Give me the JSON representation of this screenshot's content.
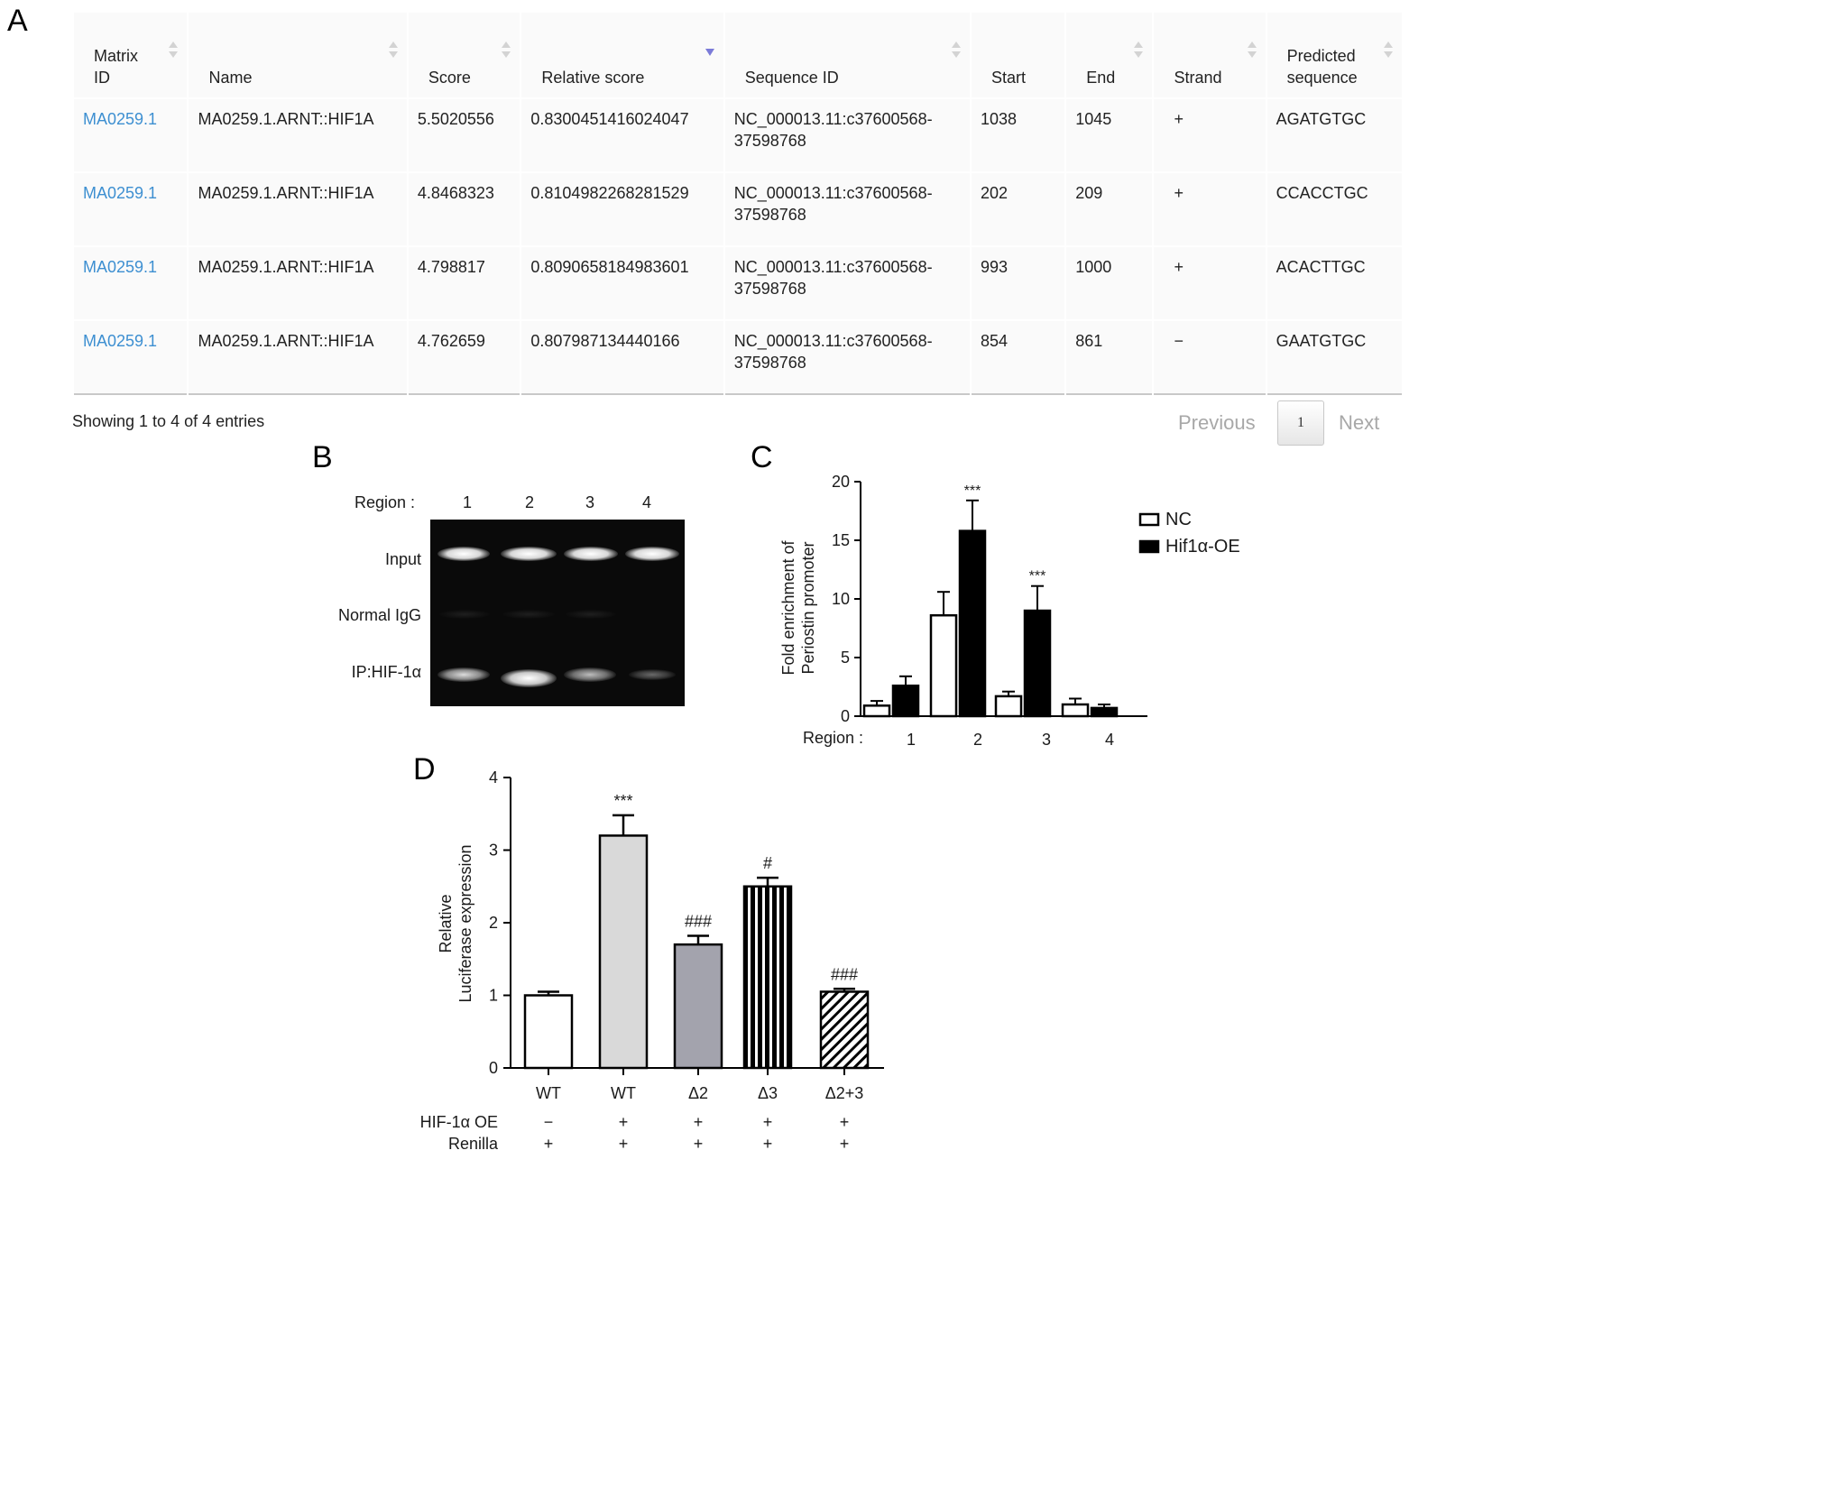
{
  "panels": {
    "a": "A",
    "b": "B",
    "c": "C",
    "d": "D"
  },
  "table": {
    "headers": [
      {
        "label": "Matrix\nID",
        "sort": "both"
      },
      {
        "label": "Name",
        "sort": "both"
      },
      {
        "label": "Score",
        "sort": "both"
      },
      {
        "label": "Relative score",
        "sort": "desc"
      },
      {
        "label": "Sequence ID",
        "sort": "both"
      },
      {
        "label": "Start",
        "sort": "none"
      },
      {
        "label": "End",
        "sort": "both"
      },
      {
        "label": "Strand",
        "sort": "both"
      },
      {
        "label": "Predicted\nsequence",
        "sort": "both"
      }
    ],
    "rows": [
      [
        "MA0259.1",
        "MA0259.1.ARNT::HIF1A",
        "5.5020556",
        "0.8300451416024047",
        "NC_000013.11:c37600568-\n37598768",
        "1038",
        "1045",
        "+",
        "AGATGTGC"
      ],
      [
        "MA0259.1",
        "MA0259.1.ARNT::HIF1A",
        "4.8468323",
        "0.8104982268281529",
        "NC_000013.11:c37600568-\n37598768",
        "202",
        "209",
        "+",
        "CCACCTGC"
      ],
      [
        "MA0259.1",
        "MA0259.1.ARNT::HIF1A",
        "4.798817",
        "0.8090658184983601",
        "NC_000013.11:c37600568-\n37598768",
        "993",
        "1000",
        "+",
        "ACACTTGC"
      ],
      [
        "MA0259.1",
        "MA0259.1.ARNT::HIF1A",
        "4.762659",
        "0.807987134440166",
        "NC_000013.11:c37600568-\n37598768",
        "854",
        "861",
        "−",
        "GAATGTGC"
      ]
    ],
    "link_color": "#3d8fd1",
    "info": "Showing 1 to 4 of 4 entries",
    "pager": {
      "previous": "Previous",
      "current": "1",
      "next": "Next"
    }
  },
  "gel": {
    "region_label": "Region :",
    "lanes": [
      "1",
      "2",
      "3",
      "4"
    ],
    "row_labels": [
      "Input",
      "Normal IgG",
      "IP:HIF-1α"
    ]
  },
  "chart_data": [
    {
      "type": "bar",
      "panel": "C",
      "ylabel": "Fold enrichment of\nPeriostin promoter",
      "xlabel": "Region :",
      "categories": [
        "1",
        "2",
        "3",
        "4"
      ],
      "ylim": [
        0,
        20
      ],
      "yticks": [
        0,
        5,
        10,
        15,
        20
      ],
      "series": [
        {
          "name": "NC",
          "values": [
            0.9,
            8.6,
            1.7,
            1.0
          ],
          "errors": [
            0.4,
            2.0,
            0.4,
            0.5
          ],
          "fill": "#ffffff"
        },
        {
          "name": "Hif1α-OE",
          "values": [
            2.6,
            15.8,
            9.0,
            0.7
          ],
          "errors": [
            0.8,
            2.6,
            2.1,
            0.3
          ],
          "fill": "#000000"
        }
      ],
      "annotations": [
        {
          "category": "2",
          "series": "Hif1α-OE",
          "text": "***"
        },
        {
          "category": "3",
          "series": "Hif1α-OE",
          "text": "***"
        }
      ],
      "legend_position": "top-right"
    },
    {
      "type": "bar",
      "panel": "D",
      "ylabel": "Relative\nLuciferase expression",
      "categories": [
        "WT",
        "WT",
        "Δ2",
        "Δ3",
        "Δ2+3"
      ],
      "values": [
        1.0,
        3.2,
        1.7,
        2.5,
        1.05
      ],
      "errors": [
        0.05,
        0.28,
        0.12,
        0.12,
        0.04
      ],
      "fills": [
        "#ffffff",
        "#d9d9d9",
        "#a3a3ad",
        "stripes-vertical",
        "stripes-diagonal"
      ],
      "ylim": [
        0,
        4
      ],
      "yticks": [
        0,
        1,
        2,
        3,
        4
      ],
      "annotations": [
        "",
        "***",
        "###",
        "#",
        "###"
      ],
      "condition_rows": [
        {
          "label": "HIF-1α OE",
          "values": [
            "−",
            "+",
            "+",
            "+",
            "+"
          ]
        },
        {
          "label": "Renilla",
          "values": [
            "+",
            "+",
            "+",
            "+",
            "+"
          ]
        }
      ]
    }
  ]
}
